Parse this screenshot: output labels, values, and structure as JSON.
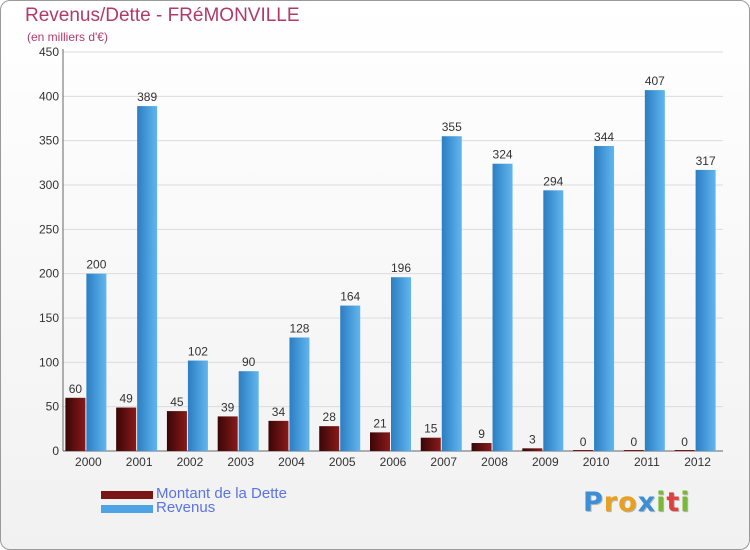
{
  "chart_data": {
    "type": "bar",
    "title": "Revenus/Dette - FRéMONVILLE",
    "subtitle": "(en milliers d'€)",
    "categories": [
      "2000",
      "2001",
      "2002",
      "2003",
      "2004",
      "2005",
      "2006",
      "2007",
      "2008",
      "2009",
      "2010",
      "2011",
      "2012"
    ],
    "series": [
      {
        "name": "Montant de la Dette",
        "color": "#7a1616",
        "values": [
          60,
          49,
          45,
          39,
          34,
          28,
          21,
          15,
          9,
          3,
          0,
          0,
          0
        ]
      },
      {
        "name": "Revenus",
        "color": "#4da3e3",
        "values": [
          200,
          389,
          102,
          90,
          128,
          164,
          196,
          355,
          324,
          294,
          344,
          407,
          317
        ]
      }
    ],
    "yticks": [
      0,
      50,
      100,
      150,
      200,
      250,
      300,
      350,
      400,
      450
    ],
    "ylim": [
      0,
      450
    ],
    "grid": true,
    "legend_position": "bottom-left"
  },
  "logo": {
    "text": "Proxiti",
    "letters": [
      {
        "ch": "P",
        "color": "#3a8fd6"
      },
      {
        "ch": "r",
        "color": "#e8a020"
      },
      {
        "ch": "o",
        "color": "#e8a020"
      },
      {
        "ch": "x",
        "color": "#3a8fd6"
      },
      {
        "ch": "i",
        "color": "#7ab83a"
      },
      {
        "ch": "t",
        "color": "#e04040"
      },
      {
        "ch": "i",
        "color": "#7ab83a"
      }
    ]
  }
}
